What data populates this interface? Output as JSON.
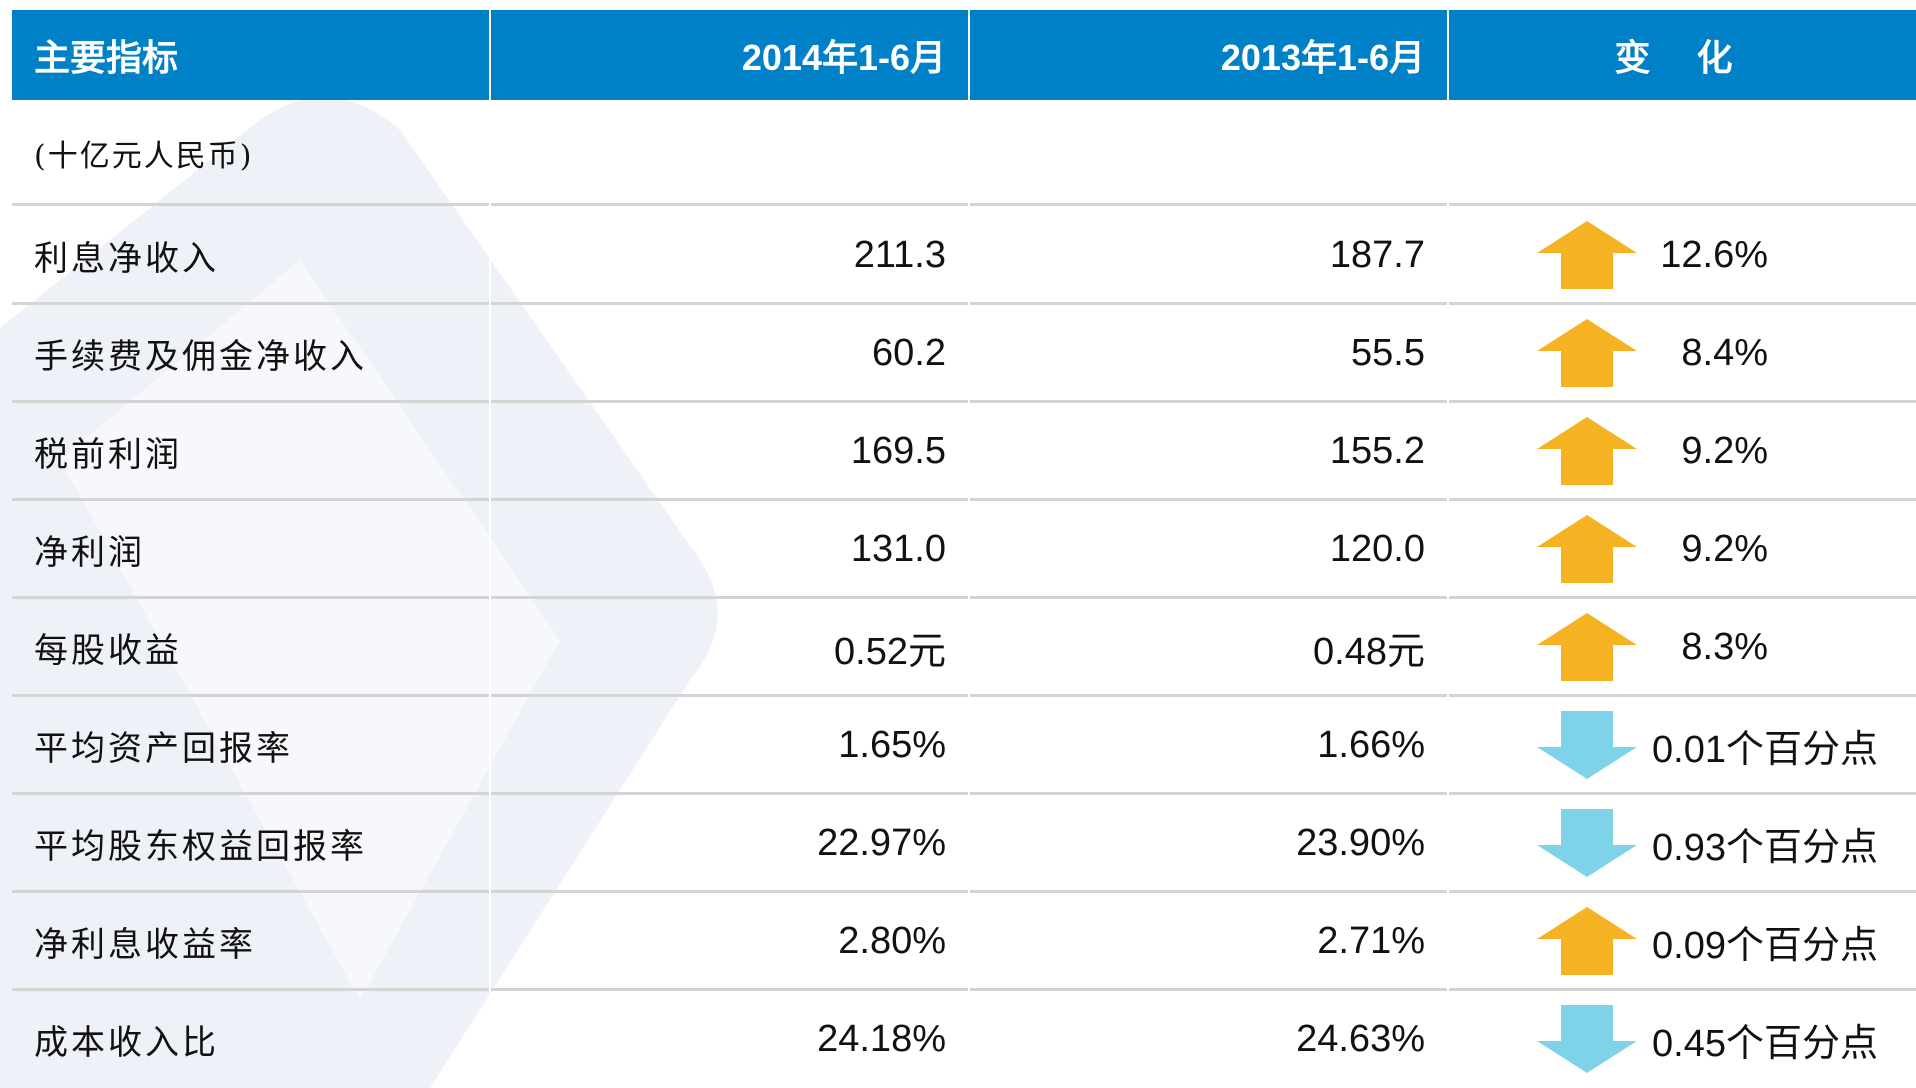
{
  "table": {
    "header": [
      "主要指标",
      "2014年1-6月",
      "2013年1-6月",
      "变 化"
    ],
    "unit": "(十亿元人民币)",
    "rows": [
      [
        "利息净收入",
        "211.3",
        "187.7",
        "12.6%",
        "up"
      ],
      [
        "手续费及佣金净收入",
        "60.2",
        "55.5",
        "8.4%",
        "up"
      ],
      [
        "税前利润",
        "169.5",
        "155.2",
        "9.2%",
        "up"
      ],
      [
        "净利润",
        "131.0",
        "120.0",
        "9.2%",
        "up"
      ],
      [
        "每股收益",
        "0.52元",
        "0.48元",
        "8.3%",
        "up"
      ],
      [
        "平均资产回报率",
        "1.65%",
        "1.66%",
        "0.01个百分点",
        "down"
      ],
      [
        "平均股东权益回报率",
        "22.97%",
        "23.90%",
        "0.93个百分点",
        "down"
      ],
      [
        "净利息收益率",
        "2.80%",
        "2.71%",
        "0.09个百分点",
        "up"
      ],
      [
        "成本收入比",
        "24.18%",
        "24.63%",
        "0.45个百分点",
        "down"
      ]
    ],
    "arrow_colors": {
      "up": "#f5b324",
      "down": "#7fd3e8"
    }
  }
}
